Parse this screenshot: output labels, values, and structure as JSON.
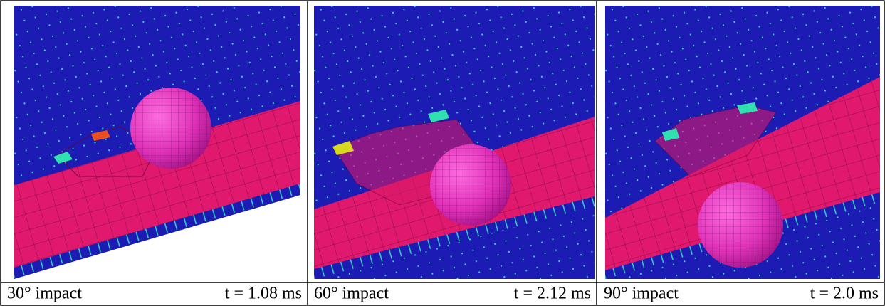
{
  "panels": [
    {
      "angle_label": "30° impact",
      "time_label": "t = 1.08 ms"
    },
    {
      "angle_label": "60° impact",
      "time_label": "t = 2.12 ms"
    },
    {
      "angle_label": "90° impact",
      "time_label": "t = 2.0 ms"
    }
  ]
}
